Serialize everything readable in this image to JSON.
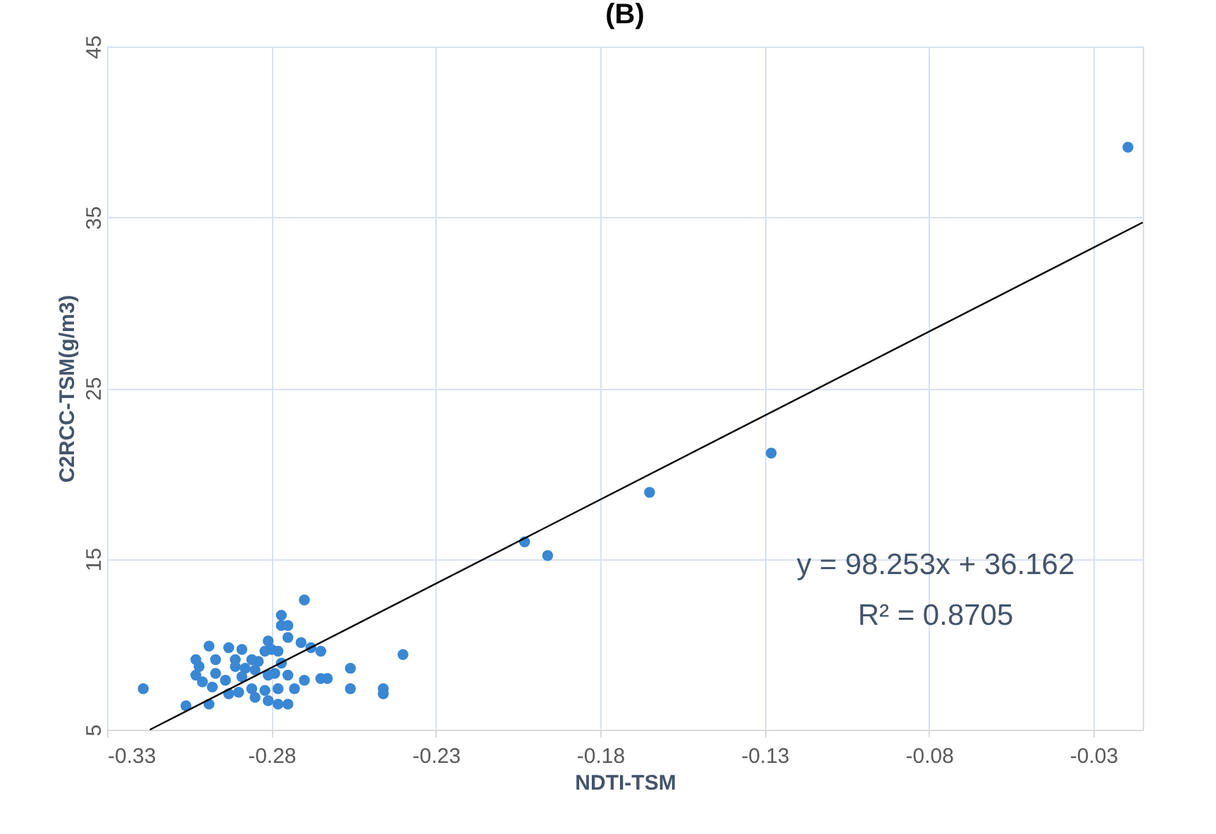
{
  "chart_data": {
    "type": "scatter",
    "title": "(B)",
    "xlabel": "NDTI-TSM",
    "ylabel": "C2RCC-TSM(g/m3)",
    "xlim": [
      -0.33,
      -0.015
    ],
    "xticks": [
      -0.33,
      -0.28,
      -0.23,
      -0.18,
      -0.13,
      -0.08,
      -0.03
    ],
    "ylim": [
      5,
      45
    ],
    "yticks": [
      5,
      15,
      25,
      35,
      45
    ],
    "grid": true,
    "series": [
      {
        "color": "#3a87d4",
        "marker": "circle",
        "x": [
          -0.319,
          -0.306,
          -0.299,
          -0.27,
          -0.277,
          -0.275,
          -0.277,
          -0.24,
          -0.256,
          -0.256,
          -0.246,
          -0.246,
          -0.263,
          -0.265,
          -0.265,
          -0.268,
          -0.271,
          -0.275,
          -0.281,
          -0.299,
          -0.293,
          -0.289,
          -0.303,
          -0.302,
          -0.297,
          -0.291,
          -0.286,
          -0.282,
          -0.278,
          -0.303,
          -0.301,
          -0.297,
          -0.294,
          -0.289,
          -0.285,
          -0.281,
          -0.279,
          -0.275,
          -0.27,
          -0.293,
          -0.29,
          -0.286,
          -0.282,
          -0.278,
          -0.273,
          -0.285,
          -0.281,
          -0.278,
          -0.275,
          -0.298,
          -0.291,
          -0.288,
          -0.284,
          -0.277,
          -0.28,
          -0.128,
          -0.165,
          -0.203,
          -0.196,
          -0.0195
        ],
        "values": [
          7.4,
          6.4,
          6.5,
          12.6,
          11.7,
          11.1,
          11.1,
          9.4,
          8.6,
          7.4,
          7.4,
          7.1,
          8.0,
          8.0,
          9.6,
          9.8,
          10.1,
          10.4,
          10.2,
          9.9,
          9.8,
          9.7,
          9.1,
          8.7,
          9.1,
          9.1,
          9.1,
          9.6,
          9.6,
          8.2,
          7.8,
          8.3,
          7.9,
          8.1,
          8.5,
          8.2,
          8.3,
          8.2,
          7.9,
          7.1,
          7.2,
          7.4,
          7.3,
          7.4,
          7.4,
          6.9,
          6.7,
          6.5,
          6.5,
          7.5,
          8.7,
          8.6,
          9.0,
          8.9,
          9.7,
          21.2,
          18.9,
          16.0,
          15.2,
          39.1
        ]
      },
      {
        "type": "line",
        "color": "#000000",
        "x": [
          -0.317,
          -0.015
        ],
        "values": [
          5.0,
          34.7
        ]
      }
    ],
    "annotations": [
      "y = 98.253x + 36.162",
      "R² = 0.8705"
    ]
  }
}
